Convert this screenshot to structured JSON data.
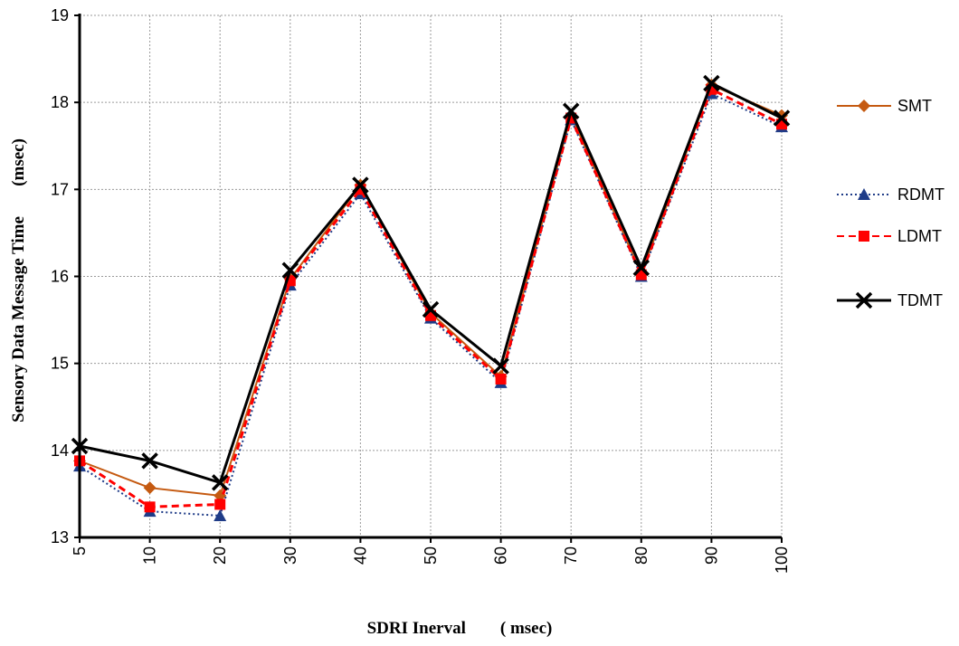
{
  "chart_data": {
    "type": "line",
    "title": "",
    "xlabel": "SDRI Inerval        ( msec)",
    "ylabel": "Sensory Data Message Time       (msec)",
    "categories": [
      "5",
      "10",
      "20",
      "30",
      "40",
      "50",
      "60",
      "70",
      "80",
      "90",
      "100"
    ],
    "ylim": [
      13,
      19
    ],
    "yticks": [
      13,
      14,
      15,
      16,
      17,
      18,
      19
    ],
    "grid": true,
    "legend_position": "right",
    "series": [
      {
        "name": "SMT",
        "color": "#c55a11",
        "line_style": "solid",
        "marker": "diamond",
        "values": [
          13.88,
          13.57,
          13.48,
          15.97,
          17.05,
          15.58,
          14.85,
          17.85,
          16.03,
          18.2,
          17.85
        ]
      },
      {
        "name": "RDMT",
        "color": "#1f3c88",
        "line_style": "dotted",
        "marker": "triangle",
        "values": [
          13.82,
          13.3,
          13.25,
          15.9,
          16.95,
          15.52,
          14.78,
          17.8,
          16.0,
          18.1,
          17.72
        ]
      },
      {
        "name": "LDMT",
        "color": "#ff0000",
        "line_style": "dashed",
        "marker": "square",
        "values": [
          13.88,
          13.35,
          13.38,
          15.95,
          17.0,
          15.55,
          14.82,
          17.82,
          16.02,
          18.15,
          17.75
        ]
      },
      {
        "name": "TDMT",
        "color": "#000000",
        "line_style": "solid",
        "marker": "x",
        "values": [
          14.05,
          13.88,
          13.63,
          16.07,
          17.05,
          15.62,
          14.97,
          17.9,
          16.1,
          18.22,
          17.82
        ]
      }
    ]
  }
}
